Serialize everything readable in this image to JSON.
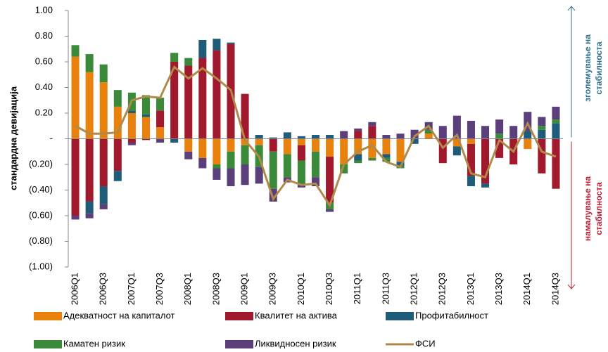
{
  "chart_data": {
    "type": "bar",
    "stacked": true,
    "y_label": "стандардна девијација",
    "categories": [
      "2006Q1",
      null,
      "2006Q3",
      null,
      "2007Q1",
      null,
      "2007Q3",
      null,
      "2008Q1",
      null,
      "2008Q3",
      null,
      "2009Q1",
      null,
      "2009Q3",
      null,
      "2010Q1",
      null,
      "2010Q3",
      null,
      "2011Q1",
      null,
      "2011Q3",
      null,
      "2012Q1",
      null,
      "2012Q3",
      null,
      "2013Q1",
      null,
      "2013Q3",
      null,
      "2014Q1",
      null,
      "2014Q3"
    ],
    "ylim": [
      -1,
      1
    ],
    "yticks": [
      {
        "value": 1,
        "label": "1.00"
      },
      {
        "value": 0.8,
        "label": "0.80"
      },
      {
        "value": 0.6,
        "label": "0.60"
      },
      {
        "value": 0.4,
        "label": "0.40"
      },
      {
        "value": 0.2,
        "label": "0.20"
      },
      {
        "value": 0,
        "label": "-"
      },
      {
        "value": -0.2,
        "label": "(0.20)"
      },
      {
        "value": -0.4,
        "label": "(0.40)"
      },
      {
        "value": -0.6,
        "label": "(0.60)"
      },
      {
        "value": -0.8,
        "label": "(0.80)"
      },
      {
        "value": -1,
        "label": "(1.00)"
      }
    ],
    "series": [
      {
        "name": "Адекватност на капиталот",
        "color": "#e8820c",
        "values": [
          0.64,
          0.52,
          0.44,
          0.25,
          0.2,
          0.17,
          0.09,
          0,
          -0.1,
          -0.15,
          -0.2,
          -0.1,
          -0.05,
          -0.05,
          0,
          -0.12,
          -0.05,
          -0.1,
          -0.14,
          -0.2,
          -0.12,
          -0.15,
          -0.12,
          -0.18,
          0,
          0.04,
          0,
          -0.06,
          -0.04,
          0,
          0,
          0,
          -0.08,
          0,
          0
        ]
      },
      {
        "name": "Квалитет на актива",
        "color": "#a0192d",
        "values": [
          -0.6,
          -0.49,
          -0.37,
          -0.25,
          -0.03,
          -0.01,
          0.13,
          0.6,
          0.57,
          0.63,
          0.69,
          0.74,
          0.35,
          0,
          -0.1,
          0,
          -0.12,
          0,
          -0.36,
          0,
          0.06,
          0.1,
          0,
          0,
          0,
          0,
          -0.19,
          0,
          -0.25,
          -0.35,
          -0.15,
          -0.2,
          0,
          -0.27,
          -0.39
        ]
      },
      {
        "name": "Профитабилност",
        "color": "#1f5c7a",
        "values": [
          0,
          -0.09,
          -0.14,
          -0.08,
          0.02,
          0.02,
          0,
          -0.03,
          0,
          0.14,
          0.09,
          0.01,
          0,
          0.03,
          0.01,
          0.05,
          0.02,
          0.03,
          0.03,
          0,
          -0.05,
          0,
          -0.03,
          -0.03,
          -0.04,
          0,
          0,
          -0.07,
          -0.08,
          -0.03,
          0,
          0,
          0.06,
          0.07,
          0.12
        ]
      },
      {
        "name": "Каматен ризик",
        "color": "#3a8a3a",
        "values": [
          0.09,
          0.14,
          0.14,
          0.13,
          0.14,
          0.15,
          0.1,
          0.07,
          0.06,
          0,
          -0.03,
          -0.13,
          -0.15,
          -0.17,
          -0.29,
          -0.18,
          -0.19,
          -0.2,
          -0.05,
          -0.07,
          -0.02,
          -0.02,
          -0.03,
          -0.02,
          0,
          0.03,
          0,
          0,
          0,
          0,
          0.04,
          0,
          0,
          0.03,
          0.03
        ]
      },
      {
        "name": "Ликвидносен ризик",
        "color": "#5b3f7a",
        "values": [
          -0.03,
          -0.04,
          -0.04,
          0,
          -0.02,
          0,
          -0.03,
          0,
          -0.06,
          -0.08,
          -0.09,
          -0.14,
          -0.16,
          -0.13,
          -0.1,
          -0.04,
          -0.02,
          -0.07,
          -0.02,
          0.06,
          0.02,
          0.03,
          0.03,
          0.04,
          0.07,
          0.06,
          0.1,
          0.18,
          0.14,
          0.1,
          0.11,
          0.1,
          0.15,
          0.07,
          0.1
        ]
      },
      {
        "name": "ФСИ",
        "type": "line",
        "color": "#b08a4a",
        "values": [
          0.1,
          0.04,
          0.04,
          0.05,
          0.3,
          0.33,
          0.32,
          0.56,
          0.47,
          0.55,
          0.47,
          0.38,
          -0.01,
          -0.14,
          -0.47,
          -0.32,
          -0.36,
          -0.35,
          -0.52,
          -0.2,
          -0.1,
          -0.05,
          -0.18,
          -0.22,
          0.02,
          0.1,
          -0.07,
          0.03,
          -0.27,
          -0.3,
          -0.01,
          -0.1,
          0.12,
          -0.1,
          -0.14
        ]
      }
    ],
    "annotations": [
      {
        "lines": [
          "зголемување на",
          "стабилноста"
        ],
        "color": "#2e6e8e",
        "direction": "up"
      },
      {
        "lines": [
          "намалување на",
          "стабилноста"
        ],
        "color": "#c0182e",
        "direction": "down"
      }
    ]
  }
}
